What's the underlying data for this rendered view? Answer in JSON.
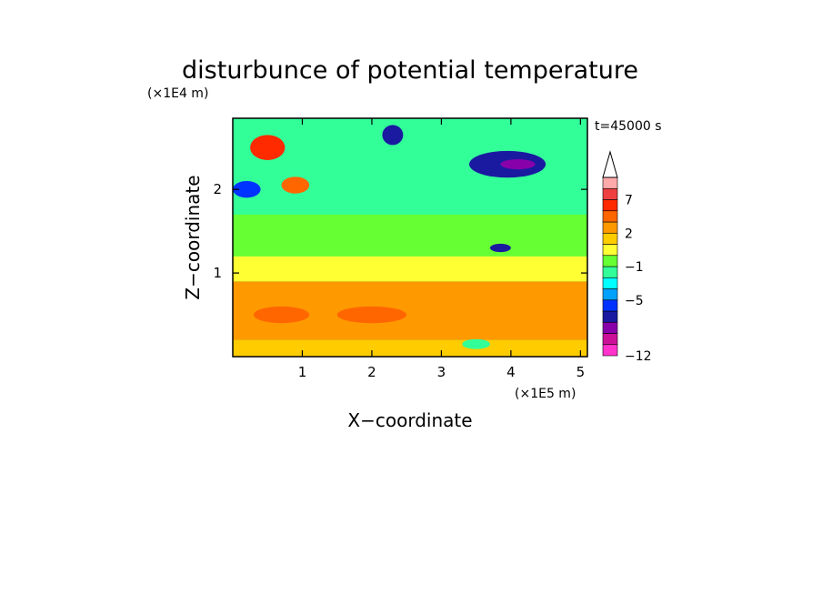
{
  "chart_data": {
    "type": "heatmap",
    "title": "disturbunce of potential temperature",
    "xlabel": "X−coordinate",
    "ylabel": "Z−coordinate",
    "x_scale_label": "(×1E5 m)",
    "y_scale_label": "(×1E4 m)",
    "time_label": "t=45000 s",
    "xlim": [
      0,
      5.1
    ],
    "ylim": [
      0,
      2.85
    ],
    "x_ticks": [
      1,
      2,
      3,
      4,
      5
    ],
    "x_tick_labels": [
      "1",
      "2",
      "3",
      "4",
      "5"
    ],
    "y_ticks": [
      1,
      2
    ],
    "y_tick_labels": [
      "1",
      "2"
    ],
    "colorbar": {
      "tick_labels": [
        "−12",
        "−5",
        "−1",
        "2",
        "7"
      ],
      "colors": [
        "#ff33cc",
        "#cc1199",
        "#8800aa",
        "#1a1aa0",
        "#0033ff",
        "#00a0ff",
        "#00ffff",
        "#33ff99",
        "#66ff33",
        "#ffff33",
        "#ffcc00",
        "#ff9900",
        "#ff6600",
        "#ff2a00",
        "#ee4040",
        "#ffaaaa"
      ]
    },
    "features": [
      {
        "kind": "layer",
        "z": [
          0.0,
          0.2
        ],
        "level": 10
      },
      {
        "kind": "layer",
        "z": [
          0.2,
          0.9
        ],
        "level": 11
      },
      {
        "kind": "layer",
        "z": [
          0.9,
          1.2
        ],
        "level": 9
      },
      {
        "kind": "layer",
        "z": [
          1.2,
          1.7
        ],
        "level": 8
      },
      {
        "kind": "layer",
        "z": [
          1.7,
          2.85
        ],
        "level": 7
      },
      {
        "kind": "blob",
        "x": 3.95,
        "z": 2.3,
        "rx": 0.55,
        "rz": 0.16,
        "level": 3
      },
      {
        "kind": "blob",
        "x": 4.1,
        "z": 2.3,
        "rx": 0.25,
        "rz": 0.06,
        "level": 2
      },
      {
        "kind": "blob",
        "x": 2.3,
        "z": 2.65,
        "rx": 0.15,
        "rz": 0.12,
        "level": 3
      },
      {
        "kind": "blob",
        "x": 0.2,
        "z": 2.0,
        "rx": 0.2,
        "rz": 0.1,
        "level": 4
      },
      {
        "kind": "blob",
        "x": 0.5,
        "z": 2.5,
        "rx": 0.25,
        "rz": 0.15,
        "level": 13
      },
      {
        "kind": "blob",
        "x": 0.9,
        "z": 2.05,
        "rx": 0.2,
        "rz": 0.1,
        "level": 12
      },
      {
        "kind": "blob",
        "x": 3.85,
        "z": 1.3,
        "rx": 0.15,
        "rz": 0.05,
        "level": 3
      },
      {
        "kind": "blob",
        "x": 0.7,
        "z": 0.5,
        "rx": 0.4,
        "rz": 0.1,
        "level": 12
      },
      {
        "kind": "blob",
        "x": 2.0,
        "z": 0.5,
        "rx": 0.5,
        "rz": 0.1,
        "level": 12
      },
      {
        "kind": "blob",
        "x": 3.5,
        "z": 0.15,
        "rx": 0.2,
        "rz": 0.06,
        "level": 7
      }
    ]
  }
}
